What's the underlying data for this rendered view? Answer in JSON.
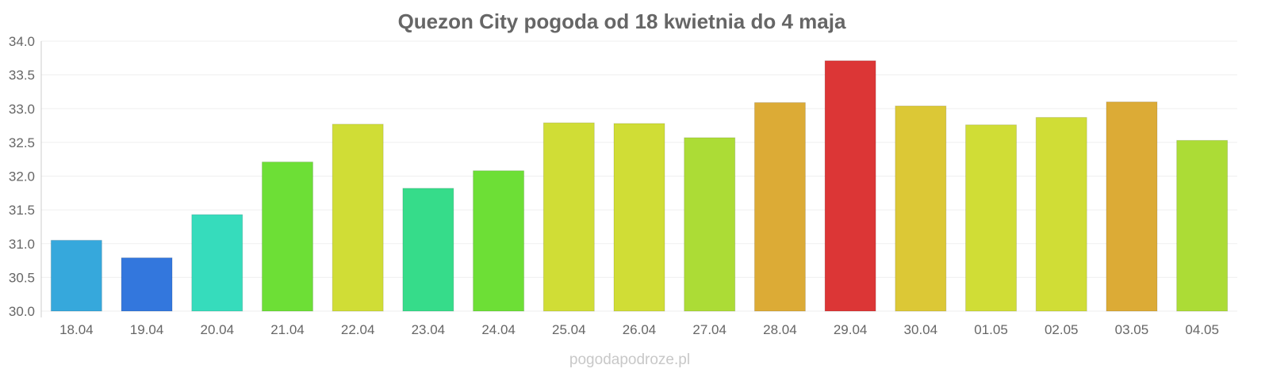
{
  "chart_data": {
    "type": "bar",
    "title": "Quezon City pogoda od 18 kwietnia do 4 maja",
    "xlabel": "",
    "ylabel": "",
    "ylim": [
      30.0,
      34.0
    ],
    "yticks": [
      "30.0",
      "30.5",
      "31.0",
      "31.5",
      "32.0",
      "32.5",
      "33.0",
      "33.5",
      "34.0"
    ],
    "grid": true,
    "categories": [
      "18.04",
      "19.04",
      "20.04",
      "21.04",
      "22.04",
      "23.04",
      "24.04",
      "25.04",
      "26.04",
      "27.04",
      "28.04",
      "29.04",
      "30.04",
      "01.05",
      "02.05",
      "03.05",
      "04.05"
    ],
    "values": [
      31.05,
      30.79,
      31.43,
      32.21,
      32.77,
      31.82,
      32.08,
      32.79,
      32.78,
      32.57,
      33.09,
      33.71,
      33.04,
      32.76,
      32.87,
      33.1,
      32.53
    ],
    "colors": [
      "#36a8dc",
      "#3377dd",
      "#36dcbc",
      "#6ddf36",
      "#d0dd36",
      "#36dc8a",
      "#6ddf36",
      "#d0dd36",
      "#d0dd36",
      "#acdc36",
      "#dcab36",
      "#dc3636",
      "#dcc836",
      "#d0dd36",
      "#d0dd36",
      "#dcab36",
      "#acdc36"
    ]
  },
  "watermark": "pogodapodroze.pl"
}
